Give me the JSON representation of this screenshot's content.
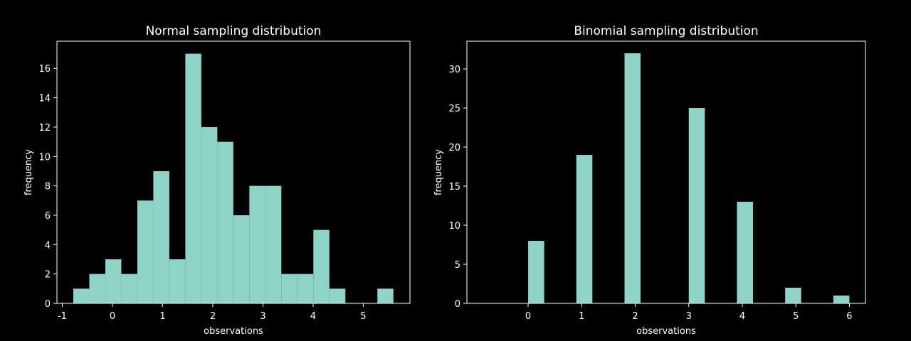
{
  "chart_data": [
    {
      "type": "histogram",
      "title": "Normal sampling distribution",
      "xlabel": "observations",
      "ylabel": "frequency",
      "color": "#8dd3c7",
      "bins": [
        -0.78,
        -0.461,
        -0.142,
        0.177,
        0.496,
        0.815,
        1.134,
        1.453,
        1.772,
        2.091,
        2.41,
        2.729,
        3.048,
        3.367,
        3.686,
        4.005,
        4.324,
        4.643,
        4.962,
        5.281,
        5.6
      ],
      "values": [
        1,
        2,
        3,
        2,
        7,
        9,
        3,
        17,
        12,
        11,
        6,
        8,
        8,
        2,
        2,
        5,
        1,
        0,
        0,
        1
      ],
      "xlim": [
        -1.106,
        5.93
      ],
      "xticks": [
        -1,
        0,
        1,
        2,
        3,
        4,
        5
      ],
      "ylim": [
        0,
        17.85
      ],
      "yticks": [
        0,
        2,
        4,
        6,
        8,
        10,
        12,
        14,
        16
      ]
    },
    {
      "type": "histogram",
      "title": "Binomial sampling distribution",
      "xlabel": "observations",
      "ylabel": "frequency",
      "color": "#8dd3c7",
      "bins": [
        0,
        0.3,
        0.6,
        0.9,
        1.2,
        1.5,
        1.8,
        2.1,
        2.4,
        2.7,
        3.0,
        3.3,
        3.6,
        3.9,
        4.2,
        4.5,
        4.8,
        5.1,
        5.4,
        5.7,
        6.0
      ],
      "values": [
        8,
        0,
        0,
        19,
        0,
        0,
        32,
        0,
        0,
        0,
        25,
        0,
        0,
        13,
        0,
        0,
        2,
        0,
        0,
        1
      ],
      "xlim": [
        -1.144,
        6.3
      ],
      "xticks": [
        0,
        1,
        2,
        3,
        4,
        5,
        6
      ],
      "ylim": [
        0,
        33.55
      ],
      "yticks": [
        0,
        5,
        10,
        15,
        20,
        25,
        30
      ]
    }
  ]
}
